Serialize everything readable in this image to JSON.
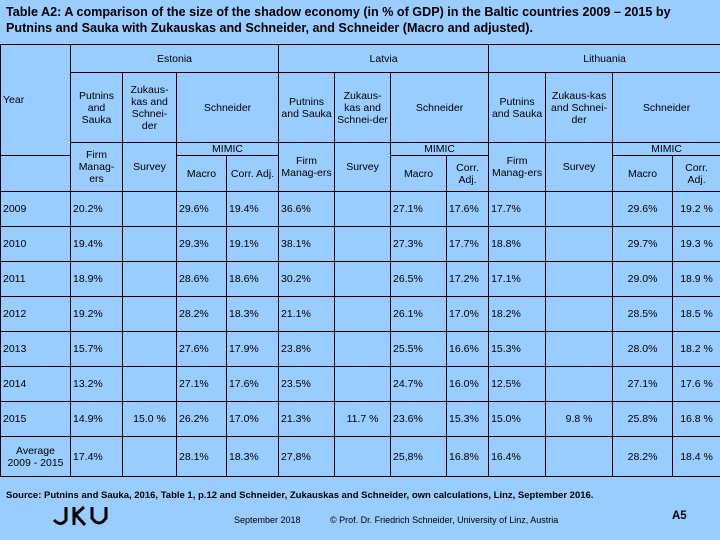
{
  "title": "Table A2: A comparison of the size of the shadow economy (in % of GDP) in the Baltic countries 2009 – 2015 by Putnins and Sauka with Zukauskas and Schneider, and Schneider (Macro and adjusted).",
  "header": {
    "countries": [
      "Estonia",
      "Latvia",
      "Lithuania"
    ],
    "year_label": "Year",
    "putnins_label": "Putnins and Sauka",
    "zukauskas_label": "Zukaus-kas and Schnei-der",
    "schneider_label": "Schneider",
    "firm_managers_label": "Firm Manag-ers",
    "survey_label": "Survey",
    "mimic_label": "MIMIC",
    "macro_label": "Macro",
    "corr_adj_label": "Corr. Adj."
  },
  "rows": [
    {
      "year": "2009",
      "values": [
        "20.2%",
        "",
        "29.6%",
        "19.4%",
        "36.6%",
        "",
        "27.1%",
        "17.6%",
        "17.7%",
        "",
        "29.6%",
        "19.2 %"
      ]
    },
    {
      "year": "2010",
      "values": [
        "19.4%",
        "",
        "29.3%",
        "19.1%",
        "38.1%",
        "",
        "27.3%",
        "17.7%",
        "18.8%",
        "",
        "29.7%",
        "19.3 %"
      ]
    },
    {
      "year": "2011",
      "values": [
        "18.9%",
        "",
        "28.6%",
        "18.6%",
        "30.2%",
        "",
        "26.5%",
        "17.2%",
        "17.1%",
        "",
        "29.0%",
        "18.9 %"
      ]
    },
    {
      "year": "2012",
      "values": [
        "19.2%",
        "",
        "28.2%",
        "18.3%",
        "21.1%",
        "",
        "26.1%",
        "17.0%",
        "18.2%",
        "",
        "28.5%",
        "18.5 %"
      ]
    },
    {
      "year": "2013",
      "values": [
        "15.7%",
        "",
        "27.6%",
        "17.9%",
        "23.8%",
        "",
        "25.5%",
        "16.6%",
        "15.3%",
        "",
        "28.0%",
        "18.2 %"
      ]
    },
    {
      "year": "2014",
      "values": [
        "13.2%",
        "",
        "27.1%",
        "17.6%",
        "23.5%",
        "",
        "24.7%",
        "16.0%",
        "12.5%",
        "",
        "27.1%",
        "17.6 %"
      ]
    },
    {
      "year": "2015",
      "values": [
        "14.9%",
        "15.0 %",
        "26.2%",
        "17.0%",
        "21.3%",
        "11.7 %",
        "23.6%",
        "15.3%",
        "15.0%",
        "9.8 %",
        "25.8%",
        "16.8 %"
      ]
    },
    {
      "year": "Average 2009 - 2015",
      "values": [
        "17.4%",
        "",
        "28.1%",
        "18.3%",
        "27,8%",
        "",
        "25,8%",
        "16.8%",
        "16.4%",
        "",
        "28.2%",
        "18.4 %"
      ]
    }
  ],
  "source": "Source: Putnins and Sauka, 2016, Table 1, p.12 and Schneider, Zukauskas and Schneider, own calculations, Linz, September 2016.",
  "footer": {
    "logo_text": "JKU",
    "date": "September 2018",
    "author": "© Prof. Dr. Friedrich Schneider, University of Linz, Austria",
    "page": "A5"
  }
}
